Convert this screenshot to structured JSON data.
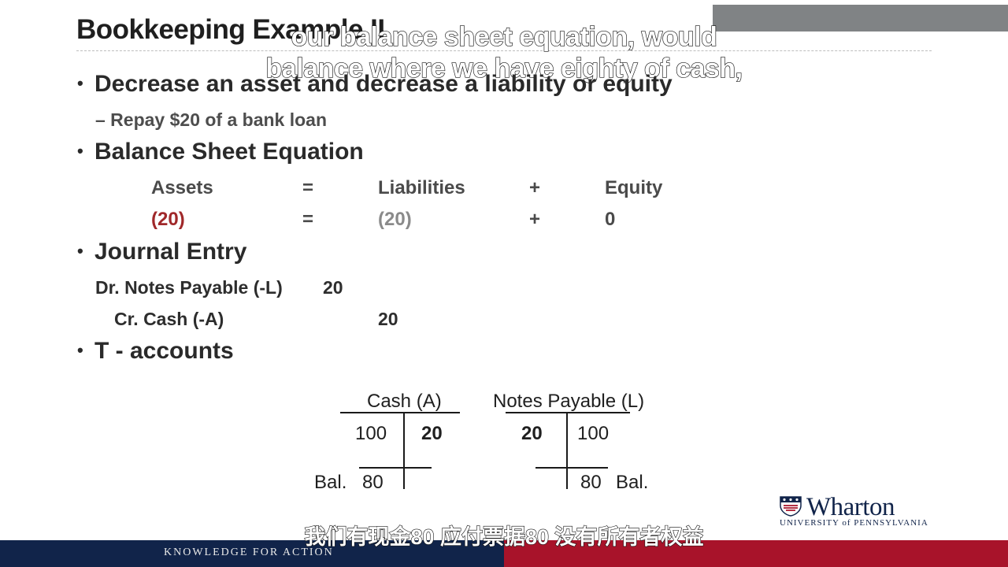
{
  "slide": {
    "title": "Bookkeeping Example II",
    "bullets": [
      "Decrease an asset and decrease a liability or equity",
      "Balance Sheet Equation",
      "Journal Entry",
      "T - accounts"
    ],
    "sub_bullet": "– Repay $20 of a bank loan",
    "equation": {
      "headers": [
        "Assets",
        "=",
        "Liabilities",
        "+",
        "Equity"
      ],
      "values": [
        "(20)",
        "=",
        "(20)",
        "+",
        "0"
      ]
    },
    "journal": {
      "debit_label": "Dr. Notes Payable (-L)",
      "debit_amount": "20",
      "credit_label": "Cr. Cash (-A)",
      "credit_amount": "20"
    },
    "t_accounts": {
      "cash": {
        "title": "Cash (A)",
        "debit": "100",
        "credit": "20",
        "bal_label": "Bal.",
        "balance": "80"
      },
      "notes": {
        "title": "Notes Payable (L)",
        "debit": "20",
        "credit": "100",
        "balance": "80",
        "bal_label": "Bal."
      }
    }
  },
  "captions": {
    "english_line1": "our balance sheet equation, would",
    "english_line2": "balance where we have eighty of cash,",
    "chinese": "我们有现金80 应付票据80 没有所有者权益"
  },
  "branding": {
    "logo": "Wharton",
    "logo_sub": "UNIVERSITY of PENNSYLVANIA",
    "tagline": "KNOWLEDGE FOR ACTION"
  },
  "colors": {
    "accent_red": "#a0282a",
    "navy": "#11244a",
    "footer_red": "#a8132a"
  }
}
